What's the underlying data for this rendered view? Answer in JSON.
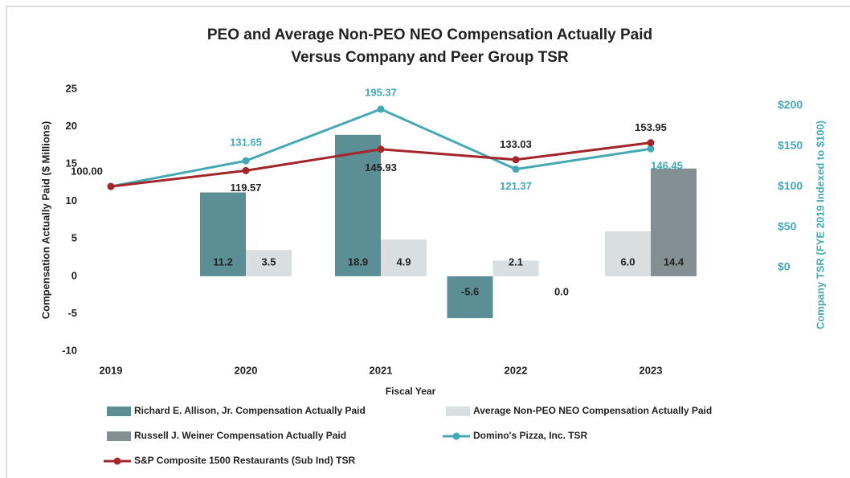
{
  "chart_data": {
    "type": "combo",
    "title": [
      "PEO and Average Non-PEO NEO Compensation Actually Paid",
      "Versus Company and Peer Group TSR"
    ],
    "x_label": "Fiscal Year",
    "y_label": "Compensation Actually Paid ($ Millions)",
    "y2_label": "Company TSR (FYE 2019 Indexed to $100)",
    "categories": [
      "2019",
      "2020",
      "2021",
      "2022",
      "2023"
    ],
    "ylim": [
      -10,
      25
    ],
    "yticks": [
      -10,
      -5,
      0,
      5,
      10,
      15,
      20,
      25
    ],
    "y2lim": [
      -103,
      220
    ],
    "y2ticks": [
      {
        "value": 0,
        "label": "$0"
      },
      {
        "value": 50,
        "label": "$50"
      },
      {
        "value": 100,
        "label": "$100"
      },
      {
        "value": 150,
        "label": "$150"
      },
      {
        "value": 200,
        "label": "$200"
      }
    ],
    "series": [
      {
        "name": "Richard E.  Allison,  Jr. Compensation Actually Paid",
        "type": "bar",
        "color": "#5b8f95",
        "values": [
          null,
          11.2,
          18.9,
          -5.6,
          null
        ],
        "value_labels": [
          null,
          "11.2",
          "18.9",
          "-5.6",
          null
        ]
      },
      {
        "name": "Average Non-PEO NEO Compensation Actually Paid",
        "type": "bar",
        "color": "#d9dfe0",
        "values": [
          null,
          3.5,
          4.9,
          2.1,
          6.0
        ],
        "value_labels": [
          null,
          "3.5",
          "4.9",
          "2.1",
          "6.0"
        ]
      },
      {
        "name": "Russell J. Weiner Compensation Actually Paid",
        "type": "bar",
        "color": "#838f93",
        "values": [
          null,
          null,
          null,
          0.0,
          14.4
        ],
        "value_labels": [
          null,
          null,
          null,
          "0.0",
          "14.4"
        ]
      },
      {
        "name": "Domino's Pizza, Inc. TSR",
        "type": "line",
        "axis": "y2",
        "color": "#45a9b4",
        "values": [
          100,
          131.65,
          195.37,
          121.37,
          146.45
        ],
        "value_labels": [
          null,
          "131.65",
          "195.37",
          "121.37",
          "146.45"
        ]
      },
      {
        "name": "S&P Composite 1500 Restaurants (Sub Ind) TSR",
        "type": "line",
        "axis": "y2",
        "color": "#a3262a",
        "values": [
          100,
          119.57,
          145.93,
          133.03,
          153.95
        ],
        "value_labels": [
          "100.00",
          "119.57",
          "145.93",
          "133.03",
          "153.95"
        ]
      }
    ]
  }
}
